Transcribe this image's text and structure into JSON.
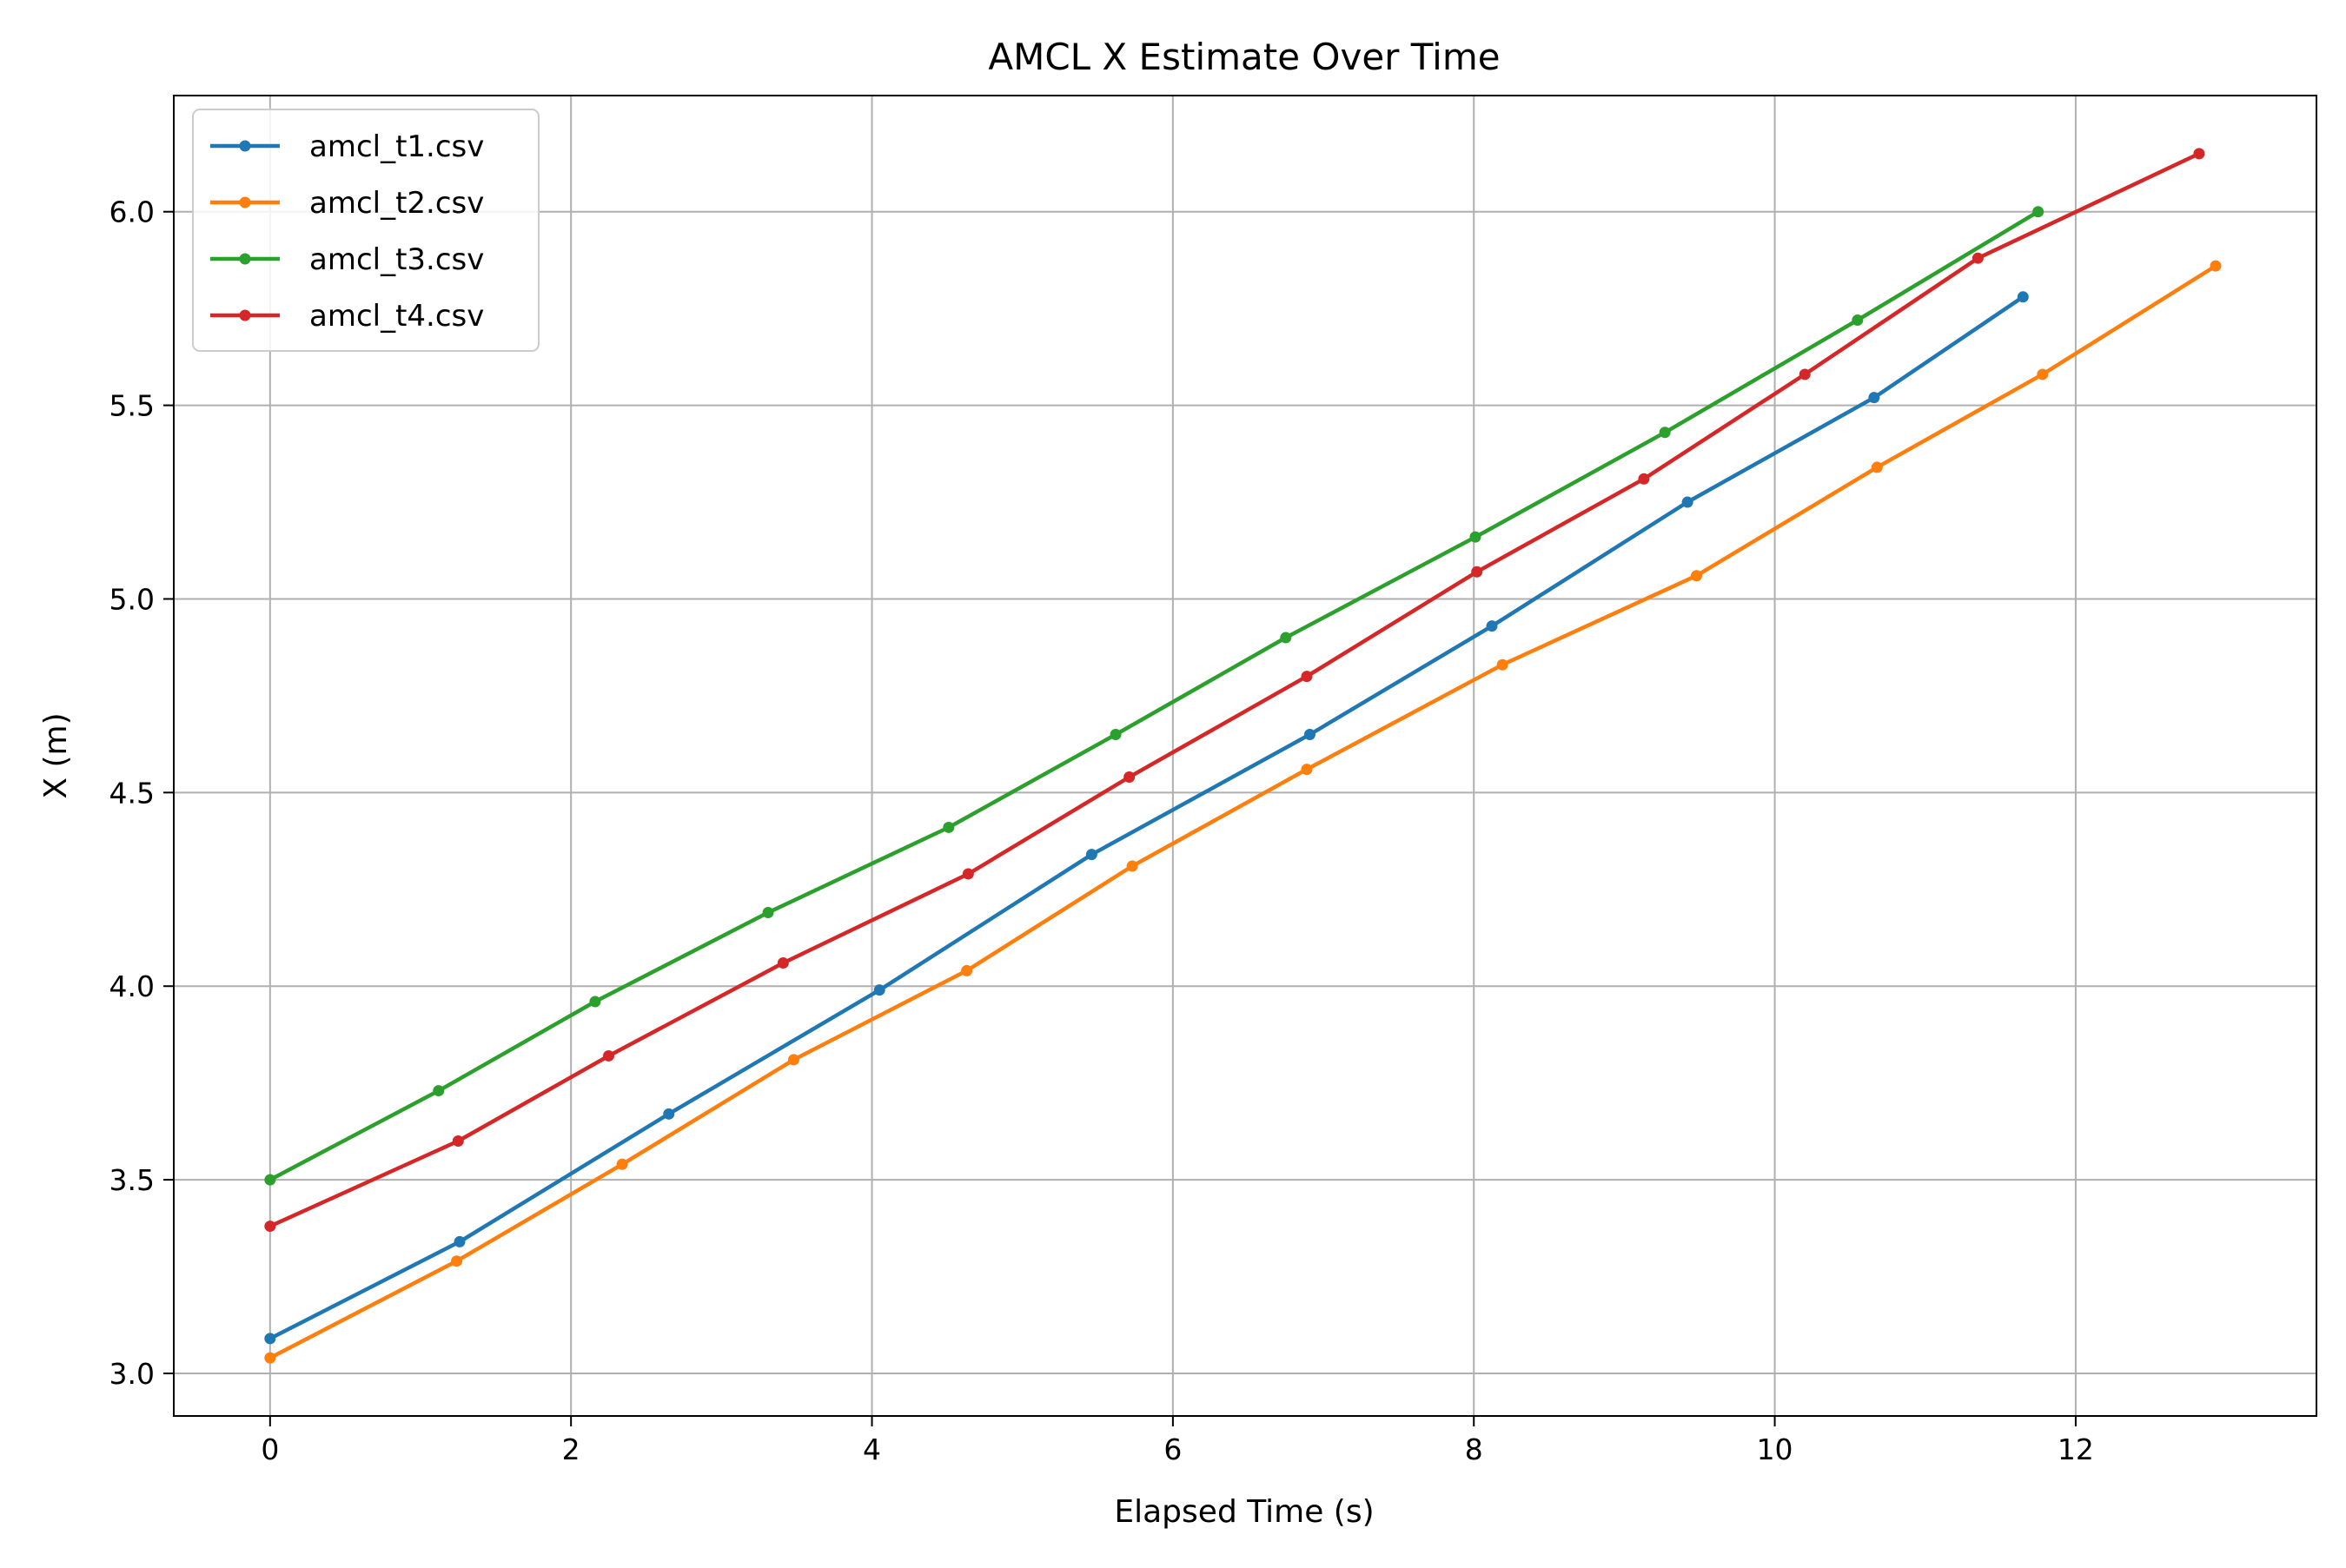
{
  "chart_data": {
    "type": "line",
    "title": "AMCL X Estimate Over Time",
    "xlabel": "Elapsed Time (s)",
    "ylabel": "X (m)",
    "xlim": [
      -0.64,
      13.6
    ],
    "ylim": [
      2.89,
      6.3
    ],
    "xticks": [
      0,
      2,
      4,
      6,
      8,
      10,
      12
    ],
    "yticks": [
      3.0,
      3.5,
      4.0,
      4.5,
      5.0,
      5.5,
      6.0
    ],
    "xtick_labels": [
      "0",
      "2",
      "4",
      "6",
      "8",
      "10",
      "12"
    ],
    "ytick_labels": [
      "3.0",
      "3.5",
      "4.0",
      "4.5",
      "5.0",
      "5.5",
      "6.0"
    ],
    "grid": true,
    "legend_position": "top-left",
    "series": [
      {
        "name": "amcl_t1.csv",
        "color": "#1f77b4",
        "x": [
          0,
          1.26,
          2.65,
          4.05,
          5.46,
          6.91,
          8.12,
          9.42,
          10.66,
          11.65
        ],
        "y": [
          3.09,
          3.34,
          3.67,
          3.99,
          4.34,
          4.65,
          4.93,
          5.25,
          5.52,
          5.78
        ]
      },
      {
        "name": "amcl_t2.csv",
        "color": "#ff7f0e",
        "x": [
          0,
          1.24,
          2.34,
          3.48,
          4.63,
          5.73,
          6.89,
          8.19,
          9.48,
          10.68,
          11.78,
          12.93
        ],
        "y": [
          3.04,
          3.29,
          3.54,
          3.81,
          4.04,
          4.31,
          4.56,
          4.83,
          5.06,
          5.34,
          5.58,
          5.86
        ]
      },
      {
        "name": "amcl_t3.csv",
        "color": "#2ca02c",
        "x": [
          0,
          1.12,
          2.16,
          3.31,
          4.51,
          5.62,
          6.75,
          8.01,
          9.27,
          10.55,
          11.75
        ],
        "y": [
          3.5,
          3.73,
          3.96,
          4.19,
          4.41,
          4.65,
          4.9,
          5.16,
          5.43,
          5.72,
          6.0
        ]
      },
      {
        "name": "amcl_t4.csv",
        "color": "#d62728",
        "x": [
          0,
          1.25,
          2.25,
          3.41,
          4.64,
          5.71,
          6.89,
          8.02,
          9.13,
          10.2,
          11.35,
          12.82
        ],
        "y": [
          3.38,
          3.6,
          3.82,
          4.06,
          4.29,
          4.54,
          4.8,
          5.07,
          5.31,
          5.58,
          5.88,
          6.15
        ]
      }
    ]
  }
}
